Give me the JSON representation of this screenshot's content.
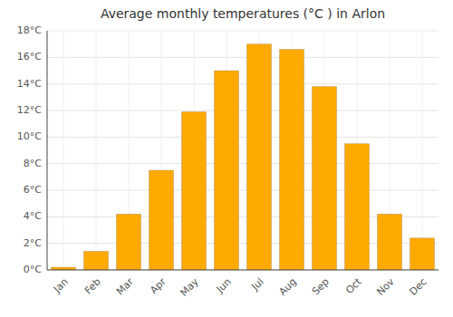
{
  "chart_data": {
    "type": "bar",
    "title": "Average monthly temperatures (°C ) in Arlon",
    "categories": [
      "Jan",
      "Feb",
      "Mar",
      "Apr",
      "May",
      "Jun",
      "Jul",
      "Aug",
      "Sep",
      "Oct",
      "Nov",
      "Dec"
    ],
    "values": [
      0.2,
      1.4,
      4.2,
      7.5,
      11.9,
      15.0,
      17.0,
      16.6,
      13.8,
      9.5,
      4.2,
      2.4
    ],
    "color": "#FFAA00",
    "ylim": [
      0,
      18
    ],
    "yticks": [
      {
        "value": 0,
        "label": "0°C"
      },
      {
        "value": 2,
        "label": "2°C"
      },
      {
        "value": 4,
        "label": "4°C"
      },
      {
        "value": 6,
        "label": "6°C"
      },
      {
        "value": 8,
        "label": "8°C"
      },
      {
        "value": 10,
        "label": "10°C"
      },
      {
        "value": 12,
        "label": "12°C"
      },
      {
        "value": 14,
        "label": "14°C"
      },
      {
        "value": 16,
        "label": "16°C"
      },
      {
        "value": 18,
        "label": "18°C"
      }
    ],
    "grid": true
  }
}
